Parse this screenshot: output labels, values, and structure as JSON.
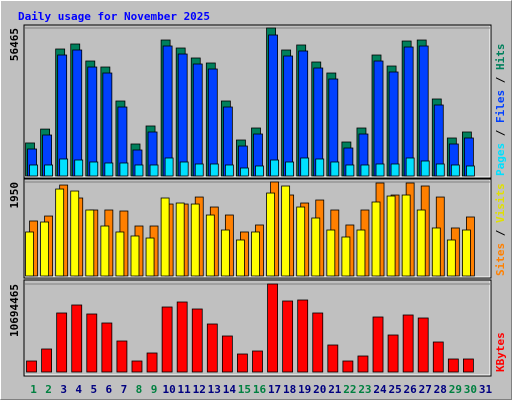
{
  "chart_data": [
    {
      "type": "bar",
      "title": "Daily usage for November 2025",
      "categories": [
        "1",
        "2",
        "3",
        "4",
        "5",
        "6",
        "7",
        "8",
        "9",
        "10",
        "11",
        "12",
        "13",
        "14",
        "15",
        "16",
        "17",
        "18",
        "19",
        "20",
        "21",
        "22",
        "23",
        "24",
        "25",
        "26",
        "27",
        "28",
        "29",
        "30",
        "31"
      ],
      "category_colors": [
        "#008040",
        "#008040",
        "#000080",
        "#000080",
        "#000080",
        "#000080",
        "#000080",
        "#008040",
        "#008040",
        "#000080",
        "#000080",
        "#000080",
        "#000080",
        "#000080",
        "#008040",
        "#008040",
        "#000080",
        "#000080",
        "#000080",
        "#000080",
        "#000080",
        "#008040",
        "#008040",
        "#000080",
        "#000080",
        "#000080",
        "#000080",
        "#000080",
        "#008040",
        "#008040",
        "#000080"
      ],
      "legend_separator": "/",
      "ylim": [
        0,
        56465
      ],
      "yticks": [
        56465
      ],
      "series": [
        {
          "name": "Pages",
          "color": "#00e0ff",
          "values": [
            4200,
            4200,
            6490,
            6100,
            5340,
            4960,
            4960,
            4200,
            4200,
            6870,
            5340,
            4580,
            4580,
            4200,
            3050,
            3820,
            6100,
            5340,
            6870,
            6490,
            5340,
            4200,
            4200,
            4580,
            4580,
            6870,
            5720,
            4580,
            4200,
            3820,
            null
          ]
        },
        {
          "name": "Files",
          "color": "#0040ff",
          "values": [
            10300,
            15640,
            46160,
            48070,
            41580,
            39290,
            26320,
            9920,
            16790,
            49600,
            46540,
            42730,
            40820,
            26320,
            11440,
            16020,
            53790,
            45780,
            47690,
            41200,
            37000,
            10680,
            16020,
            43870,
            39680,
            49210,
            49600,
            27090,
            12210,
            14500,
            null
          ]
        },
        {
          "name": "Hits",
          "color": "#00805c",
          "values": [
            12600,
            17900,
            48450,
            50360,
            43870,
            41580,
            28610,
            12210,
            19080,
            51880,
            48830,
            45020,
            43110,
            28610,
            13730,
            18310,
            56465,
            48070,
            49980,
            43490,
            39290,
            12970,
            18310,
            46160,
            41960,
            51500,
            51880,
            29380,
            14500,
            16790,
            null
          ]
        }
      ]
    },
    {
      "type": "bar",
      "ylim": [
        0,
        1950
      ],
      "yticks": [
        1950
      ],
      "series": [
        {
          "name": "Sites",
          "color": "#ff8000",
          "values": [
            1141,
            1244,
            1887,
            1618,
            1369,
            1369,
            1348,
            1037,
            1037,
            1493,
            1493,
            1638,
            1431,
            1265,
            913,
            1058,
            1950,
            1680,
            1514,
            1576,
            1369,
            1058,
            1369,
            1929,
            1680,
            1929,
            1867,
            1638,
            996,
            1224,
            null
          ]
        },
        {
          "name": "Visits",
          "color": "#ffff00",
          "values": [
            913,
            1120,
            1804,
            1763,
            1369,
            1037,
            913,
            830,
            788,
            1618,
            1514,
            1493,
            1265,
            954,
            747,
            913,
            1721,
            1867,
            1431,
            1203,
            954,
            809,
            954,
            1535,
            1659,
            1680,
            1369,
            996,
            747,
            954,
            null
          ]
        }
      ]
    },
    {
      "type": "bar",
      "ylim": [
        0,
        10694465
      ],
      "yticks": [
        10694465
      ],
      "series": [
        {
          "name": "KBytes",
          "color": "#ff0000",
          "values": [
            1336800,
            2795100,
            7170200,
            8142400,
            7048600,
            5954900,
            3767400,
            1336800,
            2309000,
            7899300,
            8507000,
            7656300,
            5833300,
            4375000,
            2187500,
            2552100,
            10694465,
            8628500,
            8750000,
            7170200,
            3281300,
            1336800,
            1944400,
            6684000,
            4496500,
            6927100,
            6562500,
            3645800,
            1579900,
            1579900,
            null
          ]
        }
      ]
    }
  ]
}
